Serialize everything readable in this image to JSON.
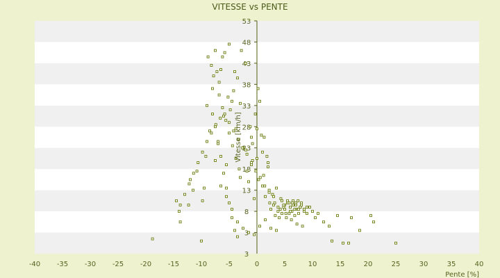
{
  "chart_data": {
    "type": "scatter",
    "title": "VITESSE vs PENTE",
    "xlabel": "Pente [%]",
    "ylabel": "Vitesse [km/h]",
    "xlim": [
      -40,
      40
    ],
    "ylim": [
      -2,
      53
    ],
    "x_ticks": [
      -40,
      -35,
      -30,
      -25,
      -20,
      -15,
      -10,
      -5,
      0,
      5,
      10,
      15,
      20,
      25,
      30,
      35,
      40
    ],
    "y_ticks": [
      3,
      8,
      13,
      18,
      23,
      28,
      33,
      38,
      43,
      48,
      53
    ],
    "y_tick_labels": [
      "3",
      "8",
      "13",
      "18",
      "23",
      "28",
      "33",
      "38",
      "43",
      "48",
      "53"
    ],
    "bottom_y_label": "3",
    "grid": true,
    "series": [
      {
        "color": "#6b7d10",
        "x": [
          -18.8,
          -14.5,
          -14.0,
          -13.8,
          -12.3,
          -12.0,
          -11.5,
          -10.8,
          -10.0,
          -9.8,
          -9.5,
          -9.2,
          -9.0,
          -8.8,
          -8.5,
          -8.2,
          -8.0,
          -7.8,
          -7.5,
          -7.2,
          -7.0,
          -6.8,
          -6.5,
          -6.2,
          -6.0,
          -5.8,
          -5.5,
          -5.2,
          -5.0,
          -4.8,
          -4.5,
          -4.2,
          -4.0,
          -3.8,
          -3.5,
          -3.0,
          -2.8,
          -2.5,
          -2.0,
          -1.5,
          -1.2,
          -1.0,
          -0.8,
          -0.5,
          -0.3,
          0.0,
          0.2,
          0.5,
          0.8,
          1.0,
          1.3,
          1.5,
          1.8,
          2.0,
          2.3,
          2.5,
          2.8,
          3.0,
          3.3,
          3.5,
          3.8,
          4.0,
          4.3,
          4.5,
          4.8,
          5.0,
          5.3,
          5.5,
          5.8,
          6.0,
          6.3,
          6.5,
          6.8,
          7.0,
          7.3,
          7.5,
          7.8,
          8.0,
          8.5,
          9.0,
          9.5,
          10.0,
          10.5,
          11.0,
          12.0,
          13.0,
          13.5,
          14.5,
          15.5,
          16.5,
          17.0,
          18.5,
          20.5,
          21.0,
          25.0,
          -8.0,
          -7.5,
          -7.0,
          -6.5,
          -6.0,
          -5.5,
          -5.0,
          -4.5,
          -4.0,
          -3.5,
          -3.0,
          -6.8,
          -6.2,
          -5.6,
          -5.0,
          -4.4,
          -3.8,
          -3.2,
          -7.5,
          -6.5,
          -5.5,
          -4.5,
          -3.5,
          -2.5,
          -1.5,
          -0.5,
          0.5,
          1.5,
          2.5,
          3.5,
          -2.0,
          -1.0,
          0.0,
          1.0,
          2.0,
          -1.8,
          -0.8,
          0.3,
          1.2,
          2.2,
          3.2,
          4.2,
          5.2,
          6.2,
          7.2,
          8.2,
          5.0,
          5.5,
          6.0,
          6.5,
          7.0,
          7.5,
          8.0,
          8.5,
          9.0,
          4.5,
          5.8,
          6.8,
          7.8,
          4.8,
          6.4,
          7.4,
          3.8,
          3.0,
          2.2,
          1.4,
          0.6,
          -0.2,
          -1.0,
          -1.8,
          -2.6,
          -3.4,
          -4.2,
          -5.0,
          -5.8,
          -6.6,
          -7.4,
          -8.2,
          -9.0,
          -9.8,
          -10.6,
          -11.4,
          -12.2,
          -13.0,
          -13.8
        ],
        "y": [
          1.5,
          10.5,
          8.0,
          5.5,
          9.5,
          15.5,
          13.0,
          17.5,
          1.0,
          10.5,
          13.5,
          21.0,
          33.0,
          44.5,
          27.0,
          42.5,
          37.0,
          40.0,
          46.0,
          41.0,
          24.0,
          38.5,
          41.5,
          44.5,
          30.5,
          45.5,
          19.0,
          35.0,
          47.5,
          32.0,
          34.0,
          36.5,
          41.0,
          27.5,
          39.5,
          33.5,
          46.0,
          23.0,
          43.0,
          15.0,
          28.0,
          19.0,
          24.0,
          11.0,
          31.0,
          20.5,
          37.0,
          34.0,
          26.0,
          14.0,
          25.5,
          11.5,
          21.0,
          18.5,
          10.0,
          8.5,
          12.0,
          9.5,
          7.0,
          13.5,
          8.0,
          6.5,
          11.0,
          7.5,
          9.0,
          8.5,
          6.5,
          10.0,
          7.5,
          9.0,
          8.0,
          10.5,
          7.0,
          9.5,
          8.5,
          7.5,
          9.0,
          10.0,
          8.5,
          7.5,
          9.0,
          8.0,
          6.5,
          7.5,
          5.5,
          4.5,
          1.0,
          7.0,
          0.5,
          0.5,
          6.5,
          3.5,
          7.0,
          5.5,
          0.5,
          31.0,
          28.0,
          24.5,
          21.0,
          17.0,
          13.5,
          10.0,
          6.5,
          3.5,
          2.0,
          16.0,
          35.5,
          32.5,
          29.5,
          26.5,
          23.5,
          20.5,
          18.0,
          20.0,
          14.0,
          11.5,
          8.5,
          5.5,
          4.0,
          3.0,
          2.5,
          4.5,
          6.0,
          4.0,
          3.5,
          22.5,
          25.5,
          27.5,
          22.0,
          19.5,
          17.5,
          20.0,
          15.5,
          16.5,
          13.0,
          10.0,
          8.5,
          7.5,
          6.0,
          5.0,
          4.5,
          9.5,
          10.5,
          8.0,
          9.5,
          10.0,
          8.5,
          9.5,
          8.0,
          9.0,
          10.5,
          10.0,
          8.5,
          9.0,
          9.5,
          10.0,
          10.5,
          9.0,
          11.5,
          12.5,
          14.0,
          16.0,
          17.5,
          19.5,
          21.5,
          23.0,
          25.0,
          27.0,
          29.0,
          31.0,
          30.0,
          28.5,
          26.5,
          24.5,
          22.0,
          19.5,
          17.0,
          14.5,
          12.0,
          9.5
        ]
      }
    ]
  }
}
